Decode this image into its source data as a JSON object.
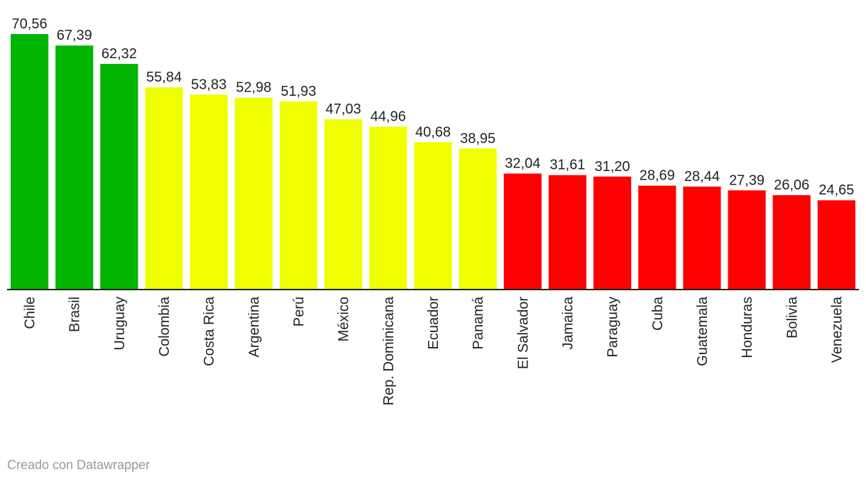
{
  "chart_data": {
    "type": "bar",
    "categories": [
      "Chile",
      "Brasil",
      "Uruguay",
      "Colombia",
      "Costa Rica",
      "Argentina",
      "Perú",
      "México",
      "Rep. Dominicana",
      "Ecuador",
      "Panamá",
      "El Salvador",
      "Jamaica",
      "Paraguay",
      "Cuba",
      "Guatemala",
      "Honduras",
      "Bolivia",
      "Venezuela"
    ],
    "values": [
      70.56,
      67.39,
      62.32,
      55.84,
      53.83,
      52.98,
      51.93,
      47.03,
      44.96,
      40.68,
      38.95,
      32.04,
      31.61,
      31.2,
      28.69,
      28.44,
      27.39,
      26.06,
      24.65
    ],
    "value_labels": [
      "70,56",
      "67,39",
      "62,32",
      "55,84",
      "53,83",
      "52,98",
      "51,93",
      "47,03",
      "44,96",
      "40,68",
      "38,95",
      "32,04",
      "31,61",
      "31,20",
      "28,69",
      "28,44",
      "27,39",
      "26,06",
      "24,65"
    ],
    "bar_colors": [
      "#00b400",
      "#00b400",
      "#00b400",
      "#f0ff00",
      "#f0ff00",
      "#f0ff00",
      "#f0ff00",
      "#f0ff00",
      "#f0ff00",
      "#f0ff00",
      "#f0ff00",
      "#ff0000",
      "#ff0000",
      "#ff0000",
      "#ff0000",
      "#ff0000",
      "#ff0000",
      "#ff0000",
      "#ff0000"
    ],
    "ylim": [
      0,
      70.56
    ],
    "grid": false,
    "legend": false,
    "title": "",
    "xlabel": "",
    "ylabel": ""
  },
  "footer": {
    "credit": "Creado con Datawrapper"
  }
}
